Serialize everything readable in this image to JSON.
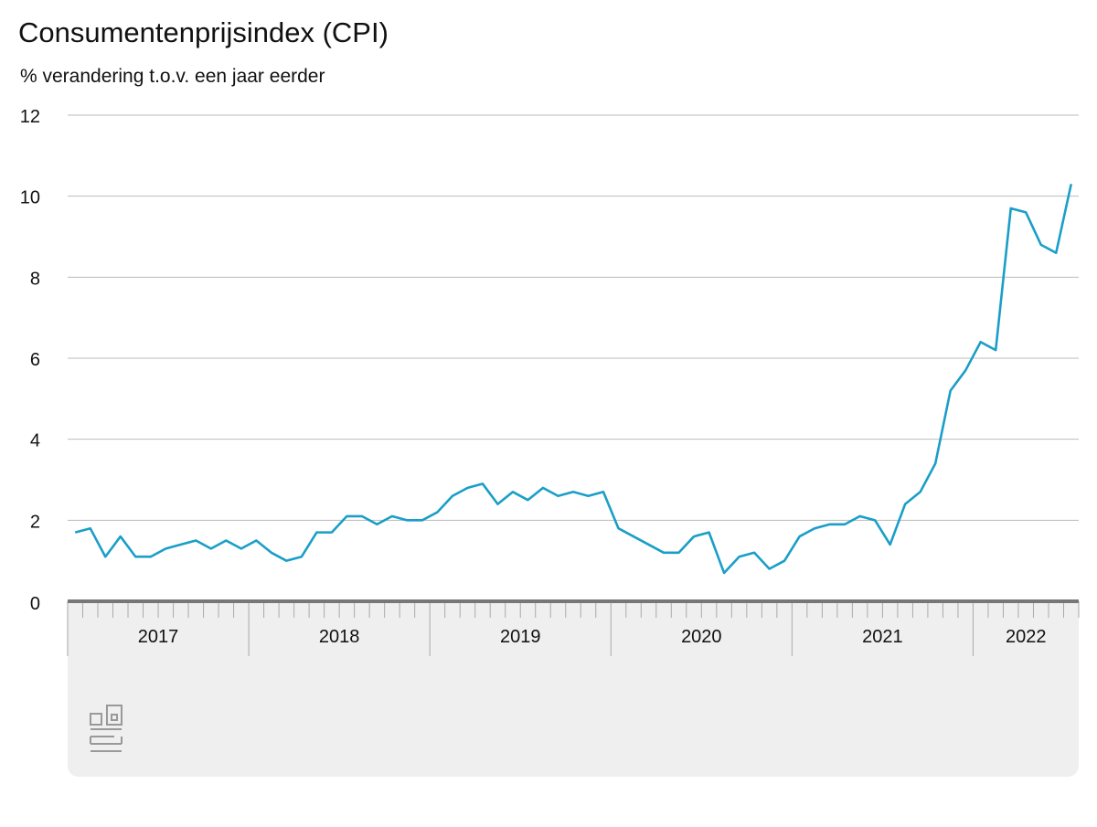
{
  "chart_data": {
    "type": "line",
    "title": "Consumentenprijsindex (CPI)",
    "subtitle": "% verandering t.o.v. een jaar eerder",
    "years": [
      "2017",
      "2018",
      "2019",
      "2020",
      "2021",
      "2022"
    ],
    "series": [
      {
        "name": "CPI",
        "color": "#1a9ec8",
        "values": [
          1.7,
          1.8,
          1.1,
          1.6,
          1.1,
          1.1,
          1.3,
          1.4,
          1.5,
          1.3,
          1.5,
          1.3,
          1.5,
          1.2,
          1.0,
          1.1,
          1.7,
          1.7,
          2.1,
          2.1,
          1.9,
          2.1,
          2.0,
          2.0,
          2.2,
          2.6,
          2.8,
          2.9,
          2.4,
          2.7,
          2.5,
          2.8,
          2.6,
          2.7,
          2.6,
          2.7,
          1.8,
          1.6,
          1.4,
          1.2,
          1.2,
          1.6,
          1.7,
          0.7,
          1.1,
          1.2,
          0.8,
          1.0,
          1.6,
          1.8,
          1.9,
          1.9,
          2.1,
          2.0,
          1.4,
          2.4,
          2.7,
          3.4,
          5.2,
          5.7,
          6.4,
          6.2,
          9.7,
          9.6,
          8.8,
          8.6,
          10.3
        ]
      }
    ],
    "ylim": [
      0,
      12
    ],
    "yticks": [
      0,
      2,
      4,
      6,
      8,
      10,
      12
    ],
    "grid": true
  }
}
